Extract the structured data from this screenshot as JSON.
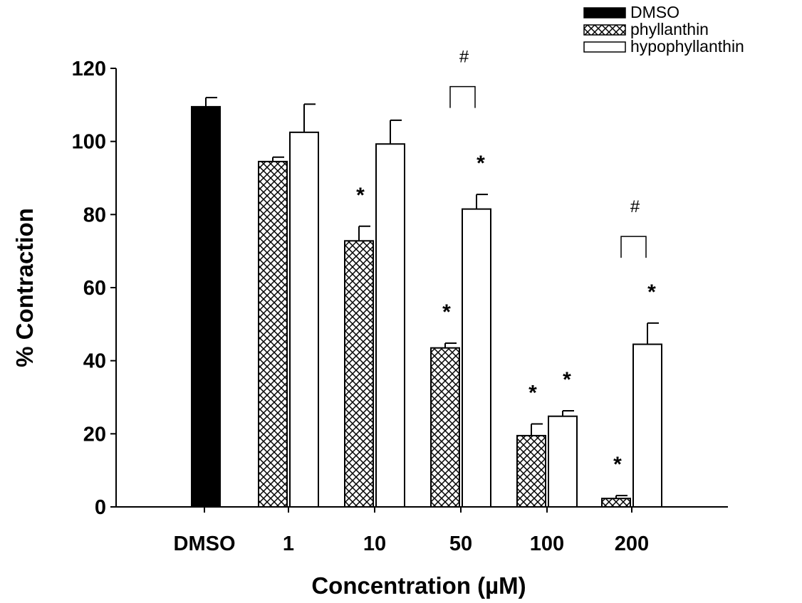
{
  "chart_data": {
    "type": "bar",
    "xlabel": "Concentration (µM)",
    "ylabel": "% Contraction",
    "ylim": [
      0,
      120
    ],
    "yticks": [
      0,
      20,
      40,
      60,
      80,
      100,
      120
    ],
    "categories": [
      "DMSO",
      "1",
      "10",
      "50",
      "100",
      "200"
    ],
    "legend_position": "top-right",
    "series": [
      {
        "name": "DMSO",
        "fill": "solid-black",
        "values": [
          109.5,
          null,
          null,
          null,
          null,
          null
        ],
        "errors": [
          2.5,
          null,
          null,
          null,
          null,
          null
        ]
      },
      {
        "name": "phyllanthin",
        "fill": "crosshatch",
        "values": [
          null,
          94.5,
          72.8,
          43.5,
          19.5,
          2.3
        ],
        "errors": [
          null,
          1.2,
          4.0,
          1.3,
          3.2,
          0.8
        ]
      },
      {
        "name": "hypophyllanthin",
        "fill": "white",
        "values": [
          null,
          102.5,
          99.3,
          81.5,
          24.8,
          44.5
        ],
        "errors": [
          null,
          7.7,
          6.5,
          4.0,
          1.5,
          5.8
        ]
      }
    ],
    "annotations": {
      "star": "*",
      "hash": "#",
      "stars": [
        {
          "category": "10",
          "series": "phyllanthin"
        },
        {
          "category": "50",
          "series": "phyllanthin"
        },
        {
          "category": "50",
          "series": "hypophyllanthin"
        },
        {
          "category": "100",
          "series": "phyllanthin"
        },
        {
          "category": "100",
          "series": "hypophyllanthin"
        },
        {
          "category": "200",
          "series": "phyllanthin"
        },
        {
          "category": "200",
          "series": "hypophyllanthin"
        }
      ],
      "hash_brackets": [
        {
          "category": "50",
          "level": 115
        },
        {
          "category": "200",
          "level": 74
        }
      ]
    }
  }
}
